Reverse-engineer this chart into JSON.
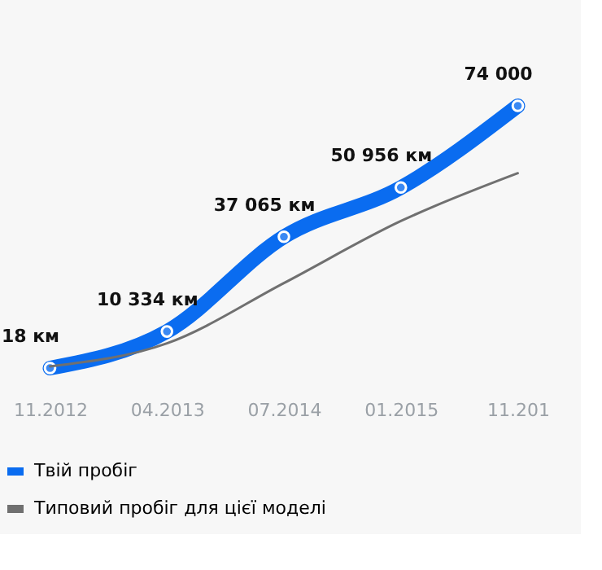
{
  "chart_data": {
    "type": "line",
    "categories": [
      "11.2012",
      "04.2013",
      "07.2014",
      "01.2015",
      "11.201"
    ],
    "series": [
      {
        "name": "Твій пробіг",
        "color": "#0a6cf0",
        "values": [
          18,
          10334,
          37065,
          50956,
          74000
        ],
        "value_labels": [
          "18 км",
          "10 334 км",
          "37 065 км",
          "50 956 км",
          "74 000"
        ],
        "marker": "circle"
      },
      {
        "name": "Типовий пробіг для цієї моделі",
        "color": "#707070",
        "values": [
          500,
          7000,
          24000,
          41500,
          55000
        ],
        "marker": "none"
      }
    ],
    "tick_labels": "x",
    "legend": "bottom"
  }
}
